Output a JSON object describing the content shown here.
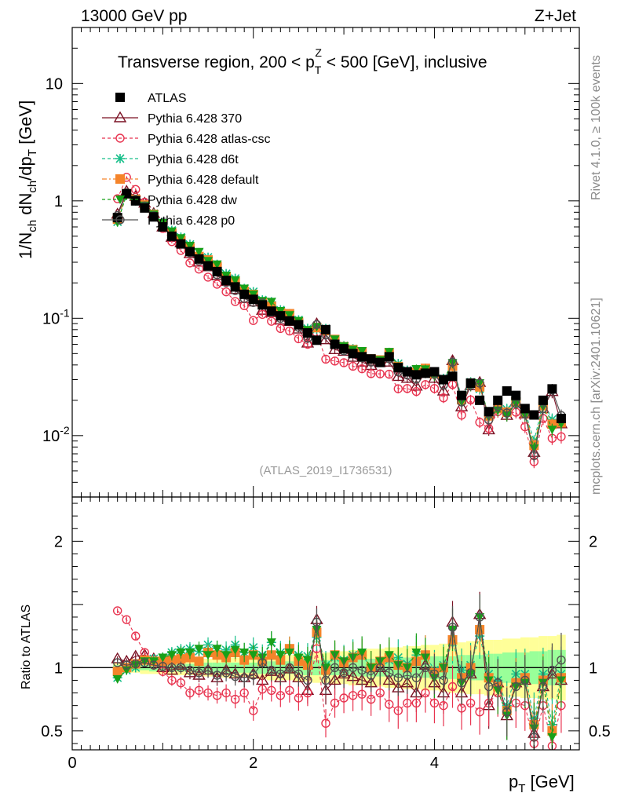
{
  "header": {
    "energy": "13000 GeV pp",
    "process": "Z+Jet",
    "title": "Transverse region, 200 < p_T^Z < 500 [GeV], inclusive",
    "analysis": "(ATLAS_2019_I1736531)"
  },
  "side": {
    "rivet": "Rivet 4.1.0, ≥ 100k events",
    "source": "mcplots.cern.ch [arXiv:2401.10621]"
  },
  "chart_data": [
    {
      "type": "scatter",
      "panel": "main",
      "title": "Transverse region, 200 < p_T^Z < 500 [GeV], inclusive",
      "xlabel": "p_T [GeV]",
      "ylabel": "1/N_ch dN_ch/dp_T [GeV]",
      "xlim": [
        0,
        5.6
      ],
      "ylim": [
        0.003,
        30
      ],
      "yscale": "log",
      "x_ticks": [
        "0",
        "2",
        "4"
      ],
      "y_ticks": [
        "10^-2",
        "10^-1",
        "1",
        "10"
      ],
      "legend": [
        {
          "name": "ATLAS",
          "color": "#000000",
          "marker": "square"
        },
        {
          "name": "Pythia 6.428 370",
          "color": "#7a1023",
          "marker": "triangle"
        },
        {
          "name": "Pythia 6.428 atlas-csc",
          "color": "#e8334f",
          "marker": "circle"
        },
        {
          "name": "Pythia 6.428 d6t",
          "color": "#17bf8a",
          "marker": "star"
        },
        {
          "name": "Pythia 6.428 default",
          "color": "#f5842a",
          "marker": "square"
        },
        {
          "name": "Pythia 6.428 dw",
          "color": "#18a018",
          "marker": "tri-down"
        },
        {
          "name": "Pythia 6.428 p0",
          "color": "#505050",
          "marker": "circle"
        }
      ],
      "atlas": {
        "x": [
          0.5,
          0.6,
          0.7,
          0.8,
          0.9,
          1.0,
          1.1,
          1.2,
          1.3,
          1.4,
          1.5,
          1.6,
          1.7,
          1.8,
          1.9,
          2.0,
          2.1,
          2.2,
          2.3,
          2.4,
          2.5,
          2.6,
          2.7,
          2.8,
          2.9,
          3.0,
          3.1,
          3.2,
          3.3,
          3.4,
          3.5,
          3.6,
          3.7,
          3.8,
          3.9,
          4.0,
          4.1,
          4.2,
          4.3,
          4.4,
          4.5,
          4.6,
          4.7,
          4.8,
          4.9,
          5.0,
          5.1,
          5.2,
          5.3,
          5.4
        ],
        "y": [
          0.72,
          1.15,
          1.0,
          0.87,
          0.73,
          0.6,
          0.5,
          0.43,
          0.37,
          0.32,
          0.28,
          0.25,
          0.21,
          0.185,
          0.16,
          0.145,
          0.13,
          0.115,
          0.105,
          0.095,
          0.088,
          0.075,
          0.065,
          0.08,
          0.06,
          0.055,
          0.05,
          0.047,
          0.045,
          0.042,
          0.047,
          0.038,
          0.035,
          0.033,
          0.034,
          0.035,
          0.03,
          0.032,
          0.022,
          0.028,
          0.02,
          0.016,
          0.02,
          0.024,
          0.022,
          0.017,
          0.015,
          0.02,
          0.025,
          0.014
        ]
      },
      "series": [
        {
          "name": "Pythia 6.428 370",
          "ratio": [
            1.07,
            1.05,
            1.09,
            1.1,
            1.07,
            1.0,
            0.98,
            1.02,
            0.96,
            0.94,
            0.98,
            0.92,
            0.98,
            0.95,
            0.92,
            0.95,
            0.9,
            0.97,
            0.92,
            0.99,
            0.92,
            0.82,
            1.38,
            0.82,
            0.9,
            0.95,
            0.93,
            0.9,
            0.88,
            1.0,
            0.9,
            0.84,
            0.88,
            0.8,
            1.02,
            0.88,
            0.8,
            1.36,
            0.8,
            0.95,
            1.42,
            0.7,
            0.88,
            0.62,
            0.88,
            0.9,
            0.48,
            0.85,
            0.95,
            0.9
          ]
        },
        {
          "name": "Pythia 6.428 atlas-csc",
          "ratio": [
            1.45,
            1.38,
            1.25,
            1.12,
            1.02,
            0.97,
            0.9,
            0.88,
            0.8,
            0.82,
            0.8,
            0.78,
            0.8,
            0.75,
            0.8,
            0.66,
            0.83,
            0.82,
            0.78,
            0.82,
            0.76,
            0.8,
            1.15,
            0.56,
            0.72,
            0.76,
            0.78,
            0.79,
            0.75,
            0.8,
            0.71,
            0.66,
            0.72,
            0.72,
            0.8,
            0.72,
            0.7,
            0.85,
            0.68,
            0.72,
            0.65,
            0.72,
            0.8,
            0.65,
            0.72,
            0.7,
            0.4,
            0.7,
            0.38,
            0.7
          ]
        },
        {
          "name": "Pythia 6.428 d6t",
          "ratio": [
            0.92,
            0.98,
            1.0,
            1.05,
            1.07,
            1.08,
            1.12,
            1.14,
            1.15,
            1.13,
            1.18,
            1.15,
            1.14,
            1.18,
            1.12,
            1.16,
            1.1,
            1.2,
            1.12,
            1.15,
            1.1,
            1.09,
            1.24,
            1.02,
            1.08,
            1.06,
            1.1,
            1.1,
            1.0,
            1.05,
            1.06,
            1.08,
            1.03,
            1.1,
            1.1,
            0.98,
            1.02,
            1.2,
            0.98,
            1.02,
            1.25,
            0.95,
            0.9,
            0.7,
            0.95,
            0.95,
            0.6,
            0.95,
            0.55,
            0.95
          ]
        },
        {
          "name": "Pythia 6.428 default",
          "ratio": [
            0.97,
            1.0,
            1.03,
            1.06,
            1.05,
            1.05,
            1.06,
            1.07,
            1.08,
            1.05,
            1.12,
            1.1,
            1.08,
            1.12,
            1.06,
            1.1,
            1.05,
            1.1,
            1.06,
            1.15,
            1.05,
            1.02,
            1.28,
            0.98,
            1.1,
            1.04,
            1.08,
            1.1,
            1.0,
            1.05,
            1.08,
            1.02,
            1.0,
            1.05,
            1.1,
            0.96,
            1.0,
            1.22,
            0.92,
            1.0,
            1.3,
            0.92,
            0.85,
            0.66,
            0.88,
            0.92,
            0.55,
            0.9,
            0.5,
            0.92
          ]
        },
        {
          "name": "Pythia 6.428 dw",
          "ratio": [
            0.91,
            0.98,
            1.02,
            1.05,
            1.05,
            1.08,
            1.1,
            1.12,
            1.12,
            1.15,
            1.1,
            1.15,
            1.1,
            1.14,
            1.12,
            1.1,
            1.08,
            1.2,
            1.1,
            1.12,
            1.08,
            1.06,
            1.3,
            1.0,
            1.1,
            1.05,
            1.08,
            1.12,
            1.0,
            1.05,
            1.1,
            1.02,
            1.0,
            1.12,
            1.08,
            0.92,
            1.0,
            1.3,
            0.88,
            0.95,
            1.4,
            0.9,
            0.82,
            0.62,
            0.85,
            0.88,
            0.52,
            0.88,
            0.45,
            0.9
          ]
        },
        {
          "name": "Pythia 6.428 p0",
          "ratio": [
            1.04,
            1.02,
            1.03,
            1.04,
            1.02,
            1.01,
            1.0,
            1.0,
            0.98,
            0.96,
            0.98,
            0.94,
            0.96,
            0.93,
            0.92,
            0.94,
            1.04,
            0.98,
            0.95,
            1.0,
            0.95,
            0.9,
            1.36,
            0.9,
            1.0,
            0.96,
            1.0,
            0.98,
            0.94,
            1.0,
            0.96,
            0.92,
            0.94,
            0.92,
            1.0,
            0.95,
            0.9,
            1.32,
            0.88,
            0.96,
            1.4,
            0.85,
            0.88,
            0.65,
            0.85,
            0.9,
            0.45,
            0.85,
            0.98,
            1.06
          ]
        }
      ]
    },
    {
      "type": "line",
      "panel": "ratio",
      "xlabel": "p_T [GeV]",
      "ylabel": "Ratio to ATLAS",
      "xlim": [
        0,
        5.6
      ],
      "ylim": [
        0.35,
        2.35
      ],
      "y_ticks": [
        "0.5",
        "1",
        "2"
      ],
      "reference": 1,
      "band_inner": [
        0.02,
        0.02,
        0.02,
        0.02,
        0.03,
        0.03,
        0.03,
        0.03,
        0.03,
        0.03,
        0.04,
        0.04,
        0.04,
        0.04,
        0.04,
        0.04,
        0.05,
        0.05,
        0.05,
        0.05,
        0.05,
        0.06,
        0.06,
        0.06,
        0.06,
        0.06,
        0.07,
        0.07,
        0.07,
        0.07,
        0.07,
        0.08,
        0.08,
        0.08,
        0.08,
        0.09,
        0.09,
        0.09,
        0.1,
        0.1,
        0.1,
        0.11,
        0.11,
        0.12,
        0.12,
        0.12,
        0.13,
        0.13,
        0.14,
        0.14
      ],
      "band_outer": [
        0.04,
        0.04,
        0.04,
        0.05,
        0.05,
        0.05,
        0.06,
        0.06,
        0.06,
        0.07,
        0.07,
        0.07,
        0.08,
        0.08,
        0.08,
        0.09,
        0.09,
        0.1,
        0.1,
        0.1,
        0.11,
        0.11,
        0.12,
        0.12,
        0.13,
        0.13,
        0.14,
        0.14,
        0.15,
        0.15,
        0.16,
        0.16,
        0.17,
        0.17,
        0.18,
        0.18,
        0.19,
        0.2,
        0.2,
        0.21,
        0.21,
        0.22,
        0.22,
        0.23,
        0.23,
        0.24,
        0.24,
        0.25,
        0.25,
        0.26
      ]
    }
  ]
}
